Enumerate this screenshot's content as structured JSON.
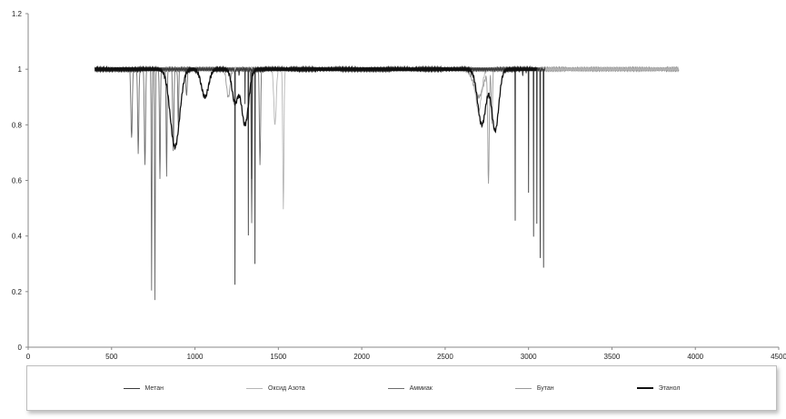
{
  "chart_data": {
    "type": "line",
    "title": "",
    "xlabel": "",
    "ylabel": "",
    "xlim": [
      0,
      4500
    ],
    "ylim": [
      0,
      1.2
    ],
    "x_ticks": [
      "0",
      "500",
      "1000",
      "1500",
      "2000",
      "2500",
      "3000",
      "3500",
      "4000",
      "4500"
    ],
    "y_ticks": [
      "0",
      "0.2",
      "0.4",
      "0.6",
      "0.8",
      "1",
      "1.2"
    ],
    "grid": false,
    "legend_position": "bottom",
    "series": [
      {
        "name": "Метан",
        "color": "#3a3a3a",
        "baseline_range": [
          400,
          3100
        ],
        "bands": [
          [
            1240,
            1.0,
            0.78
          ],
          [
            1265,
            0.55,
            0.48
          ],
          [
            1285,
            0.4,
            0.58
          ],
          [
            1300,
            0.25,
            0.12
          ],
          [
            1320,
            0.35,
            0.6
          ],
          [
            1340,
            0.3,
            0.4
          ],
          [
            1360,
            0.55,
            0.7
          ],
          [
            2920,
            0.8,
            0.55
          ],
          [
            2945,
            0.5,
            0.45
          ],
          [
            2965,
            0.6,
            0.42
          ],
          [
            2985,
            0.5,
            0.5
          ],
          [
            3000,
            0.5,
            0.45
          ],
          [
            3017,
            0.4,
            0.12
          ],
          [
            3030,
            0.5,
            0.6
          ],
          [
            3050,
            0.5,
            0.55
          ],
          [
            3070,
            0.5,
            0.68
          ],
          [
            3090,
            0.6,
            0.72
          ]
        ]
      },
      {
        "name": "Оксид Азота",
        "color": "#b5b5b5",
        "baseline_range": [
          400,
          3900
        ],
        "bands": [
          [
            1530,
            5.0,
            0.5
          ],
          [
            1480,
            10.0,
            0.2
          ],
          [
            2700,
            25.0,
            0.15
          ]
        ]
      },
      {
        "name": "Аммиак",
        "color": "#6d6d6d",
        "baseline_range": [
          400,
          3900
        ],
        "bands": [
          [
            620,
            6.0,
            0.25
          ],
          [
            660,
            5.0,
            0.3
          ],
          [
            700,
            5.0,
            0.35
          ],
          [
            740,
            3.0,
            0.79
          ],
          [
            760,
            3.0,
            0.83
          ],
          [
            790,
            4.0,
            0.4
          ],
          [
            830,
            4.0,
            0.38
          ],
          [
            870,
            5.0,
            0.3
          ],
          [
            900,
            4.0,
            0.2
          ],
          [
            950,
            5.0,
            0.1
          ],
          [
            1340,
            4.0,
            0.55
          ],
          [
            1390,
            5.0,
            0.35
          ]
        ]
      },
      {
        "name": "Бутан",
        "color": "#9a9a9a",
        "baseline_range": [
          400,
          3900
        ],
        "bands": [
          [
            2700,
            40.0,
            0.1
          ],
          [
            2760,
            6.0,
            0.4
          ],
          [
            2780,
            5.0,
            0.2
          ],
          [
            1200,
            15.0,
            0.1
          ]
        ]
      },
      {
        "name": "Этанол",
        "color": "#111111",
        "baseline_range": [
          400,
          3050
        ],
        "bands": [
          [
            880,
            40.0,
            0.28
          ],
          [
            1060,
            30.0,
            0.1
          ],
          [
            1240,
            25.0,
            0.12
          ],
          [
            1300,
            30.0,
            0.2
          ],
          [
            2720,
            35.0,
            0.2
          ],
          [
            2800,
            30.0,
            0.22
          ]
        ]
      }
    ]
  }
}
